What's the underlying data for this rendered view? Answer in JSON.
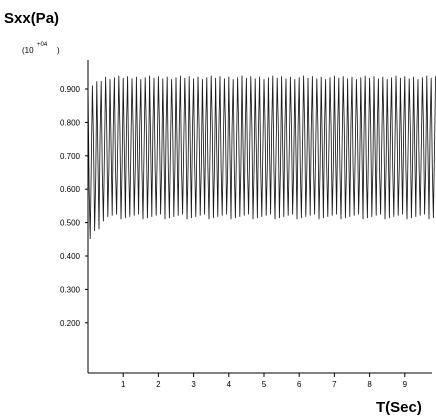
{
  "chart_data": {
    "type": "line",
    "title": "",
    "ylabel": "Sxx(Pa)",
    "y_scale_base": "(10",
    "y_scale_exp": "+04",
    "y_scale_close": ")",
    "xlabel": "T(Sec)",
    "xlim": [
      0,
      9.9
    ],
    "ylim": [
      0.1,
      0.97
    ],
    "x_ticks": [
      1,
      2,
      3,
      4,
      5,
      6,
      7,
      8,
      9
    ],
    "x_tick_labels": [
      "1",
      "2",
      "3",
      "4",
      "5",
      "6",
      "7",
      "8",
      "9"
    ],
    "y_ticks": [
      0.2,
      0.3,
      0.4,
      0.5,
      0.6,
      0.7,
      0.8,
      0.9
    ],
    "y_tick_labels": [
      "0.200",
      "0.300",
      "0.400",
      "0.500",
      "0.600",
      "0.700",
      "0.800",
      "0.900"
    ],
    "series": [
      {
        "color": "#1a1a1a",
        "oscillation_period": 0.125,
        "initial_max": 0.91,
        "initial_min": 0.43,
        "steady_max": 0.94,
        "steady_min": 0.51,
        "settle_time": 0.5
      }
    ],
    "grid": false,
    "legend": "none"
  }
}
